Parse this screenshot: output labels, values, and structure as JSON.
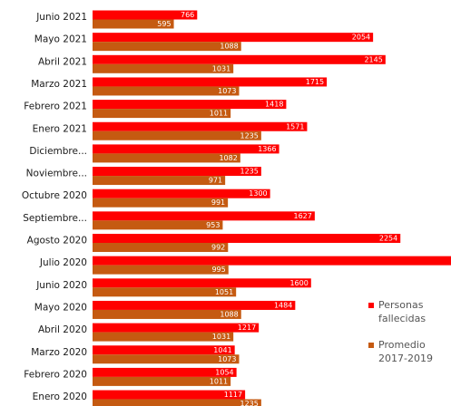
{
  "chart_data": {
    "type": "bar",
    "orientation": "horizontal",
    "categories": [
      "Junio 2021",
      "Mayo 2021",
      "Abril 2021",
      "Marzo 2021",
      "Febrero 2021",
      "Enero 2021",
      "Diciembre...",
      "Noviembre...",
      "Octubre 2020",
      "Septiembre...",
      "Agosto 2020",
      "Julio 2020",
      "Junio 2020",
      "Mayo 2020",
      "Abril 2020",
      "Marzo 2020",
      "Febrero 2020",
      "Enero 2020"
    ],
    "series": [
      {
        "name": "Personas fallecidas",
        "legend_lines": [
          "Personas",
          "fallecidas"
        ],
        "color": "#ff0000",
        "values": [
          766,
          2054,
          2145,
          1715,
          1418,
          1571,
          1366,
          1235,
          1300,
          1627,
          2254,
          2700,
          1600,
          1484,
          1217,
          1041,
          1054,
          1117
        ],
        "labels": [
          "766",
          "2054",
          "2145",
          "1715",
          "1418",
          "1571",
          "1366",
          "1235",
          "1300",
          "1627",
          "2254",
          "",
          "1600",
          "1484",
          "1217",
          "1041",
          "1054",
          "1117"
        ]
      },
      {
        "name": "Promedio 2017-2019",
        "legend_lines": [
          "Promedio",
          "2017-2019"
        ],
        "color": "#c55a11",
        "values": [
          595,
          1088,
          1031,
          1073,
          1011,
          1235,
          1082,
          971,
          991,
          953,
          992,
          995,
          1051,
          1088,
          1031,
          1073,
          1011,
          1235
        ],
        "labels": [
          "595",
          "1088",
          "1031",
          "1073",
          "1011",
          "1235",
          "1082",
          "971",
          "991",
          "953",
          "992",
          "995",
          "1051",
          "1088",
          "1031",
          "1073",
          "1011",
          "1235"
        ]
      }
    ],
    "xlim": [
      0,
      2700
    ],
    "grid": false,
    "legend_position": "right"
  }
}
